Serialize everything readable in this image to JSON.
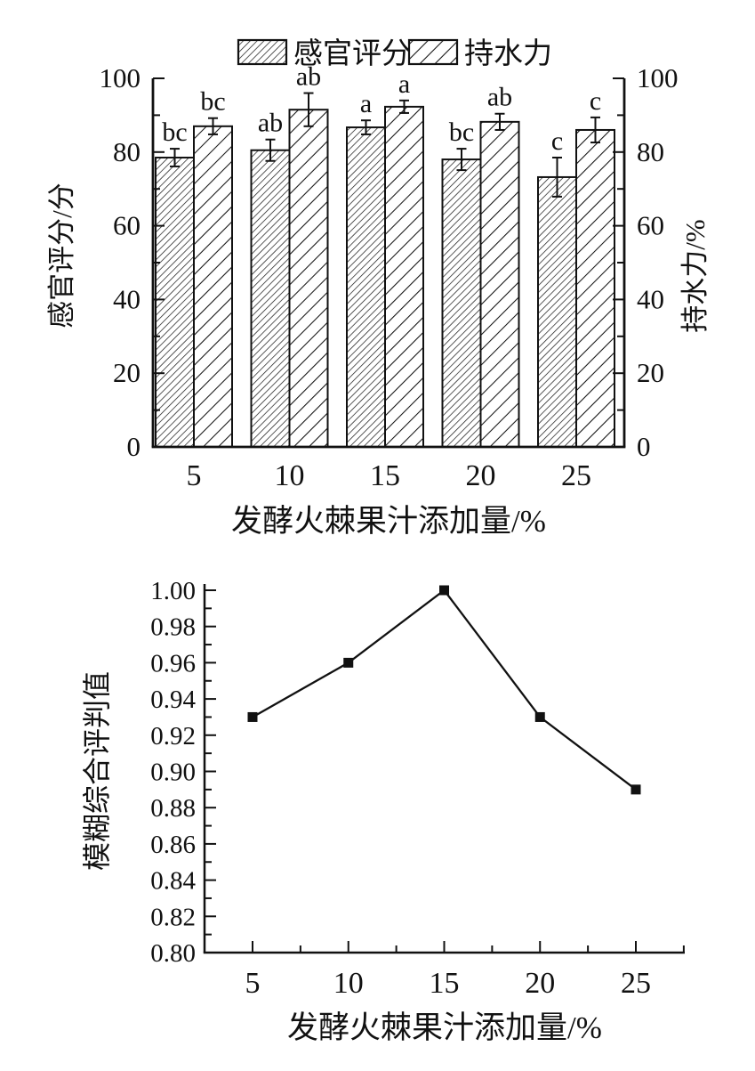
{
  "page": {
    "background": "#ffffff",
    "ink_color": "#111111"
  },
  "chart_data": [
    {
      "type": "bar",
      "title": "",
      "categories": [
        "5",
        "10",
        "15",
        "20",
        "25"
      ],
      "xlabel": "发酵火棘果汁添加量/%",
      "ylabel_left": "感官评分/分",
      "ylabel_right": "持水力/%",
      "ylim": [
        0,
        100
      ],
      "ytick_major": 20,
      "ytick_minor": 10,
      "grid": false,
      "legend_position": "top-center",
      "legend": [
        "感官评分",
        "持水力"
      ],
      "series": [
        {
          "name": "感官评分",
          "axis": "left",
          "hatch": "dense",
          "values": [
            78.5,
            80.5,
            86.7,
            78.0,
            73.2
          ],
          "errors": [
            2.4,
            2.9,
            1.9,
            2.9,
            5.3
          ],
          "sig_letters": [
            "bc",
            "ab",
            "a",
            "bc",
            "c"
          ]
        },
        {
          "name": "持水力",
          "axis": "right",
          "hatch": "sparse",
          "values": [
            87.0,
            91.5,
            92.3,
            88.2,
            86.0
          ],
          "errors": [
            2.2,
            4.5,
            1.7,
            2.2,
            3.4
          ],
          "sig_letters": [
            "bc",
            "ab",
            "a",
            "ab",
            "c"
          ]
        }
      ]
    },
    {
      "type": "line",
      "title": "",
      "x": [
        5,
        10,
        15,
        20,
        25
      ],
      "y": [
        0.93,
        0.96,
        1.0,
        0.93,
        0.89
      ],
      "xlabel": "发酵火棘果汁添加量/%",
      "ylabel": "模糊综合评判值",
      "ylim": [
        0.8,
        1.0
      ],
      "ytick_major": 0.02,
      "ytick_minor": 0.01,
      "xtick_major": 5,
      "xtick_minor": 2.5,
      "marker": "square",
      "grid": false,
      "line_color": "#111111"
    }
  ]
}
